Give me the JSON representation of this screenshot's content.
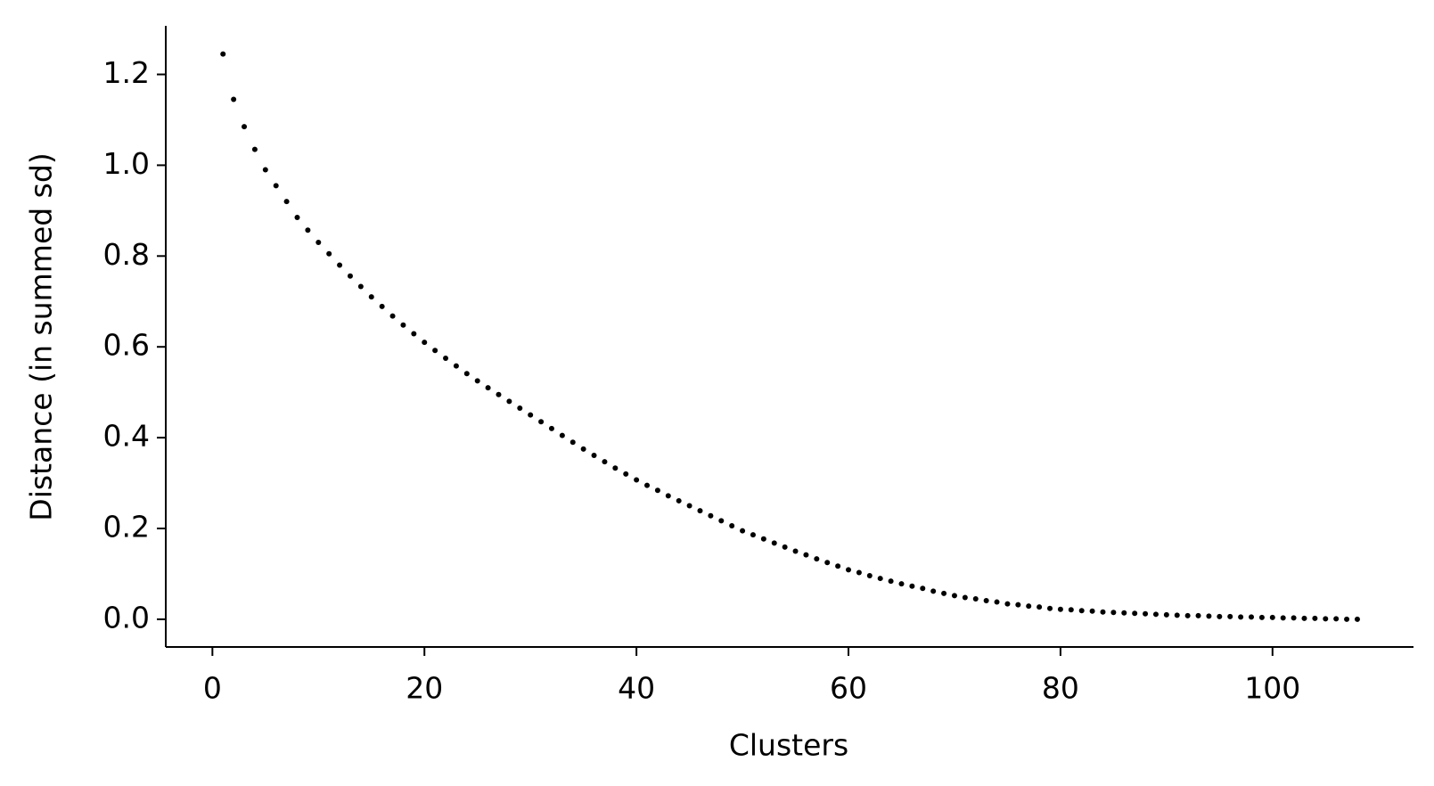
{
  "chart_data": {
    "type": "scatter",
    "x_label": "Clusters",
    "y_label": "Distance (in summed sd)",
    "x": [
      1,
      2,
      3,
      4,
      5,
      6,
      7,
      8,
      9,
      10,
      11,
      12,
      13,
      14,
      15,
      16,
      17,
      18,
      19,
      20,
      21,
      22,
      23,
      24,
      25,
      26,
      27,
      28,
      29,
      30,
      31,
      32,
      33,
      34,
      35,
      36,
      37,
      38,
      39,
      40,
      41,
      42,
      43,
      44,
      45,
      46,
      47,
      48,
      49,
      50,
      51,
      52,
      53,
      54,
      55,
      56,
      57,
      58,
      59,
      60,
      61,
      62,
      63,
      64,
      65,
      66,
      67,
      68,
      69,
      70,
      71,
      72,
      73,
      74,
      75,
      76,
      77,
      78,
      79,
      80,
      81,
      82,
      83,
      84,
      85,
      86,
      87,
      88,
      89,
      90,
      91,
      92,
      93,
      94,
      95,
      96,
      97,
      98,
      99,
      100,
      101,
      102,
      103,
      104,
      105,
      106,
      107,
      108
    ],
    "values": [
      1.245,
      1.145,
      1.085,
      1.035,
      0.99,
      0.955,
      0.92,
      0.885,
      0.857,
      0.83,
      0.805,
      0.78,
      0.756,
      0.733,
      0.71,
      0.689,
      0.668,
      0.648,
      0.629,
      0.61,
      0.592,
      0.575,
      0.558,
      0.541,
      0.525,
      0.51,
      0.495,
      0.48,
      0.465,
      0.45,
      0.435,
      0.42,
      0.405,
      0.39,
      0.375,
      0.361,
      0.347,
      0.333,
      0.32,
      0.307,
      0.295,
      0.284,
      0.272,
      0.261,
      0.25,
      0.239,
      0.228,
      0.217,
      0.206,
      0.195,
      0.186,
      0.177,
      0.168,
      0.159,
      0.15,
      0.142,
      0.133,
      0.125,
      0.117,
      0.109,
      0.103,
      0.096,
      0.09,
      0.084,
      0.078,
      0.073,
      0.068,
      0.062,
      0.057,
      0.052,
      0.048,
      0.045,
      0.041,
      0.038,
      0.034,
      0.032,
      0.029,
      0.027,
      0.024,
      0.022,
      0.021,
      0.019,
      0.018,
      0.016,
      0.015,
      0.014,
      0.013,
      0.012,
      0.011,
      0.01,
      0.009,
      0.008,
      0.008,
      0.007,
      0.006,
      0.006,
      0.005,
      0.005,
      0.004,
      0.004,
      0.003,
      0.003,
      0.002,
      0.002,
      0.001,
      0.001,
      0.0,
      0.0
    ],
    "color": "#000000",
    "xlim": [
      -4.4,
      113.3
    ],
    "ylim": [
      -0.061,
      1.307
    ],
    "xticks": [
      0,
      20,
      40,
      60,
      80,
      100
    ],
    "yticks": [
      {
        "value": 0,
        "label": "0.0"
      },
      0.2,
      0.4,
      0.6,
      0.8,
      {
        "value": 1,
        "label": "1.0"
      },
      1.2
    ],
    "grid": false
  }
}
